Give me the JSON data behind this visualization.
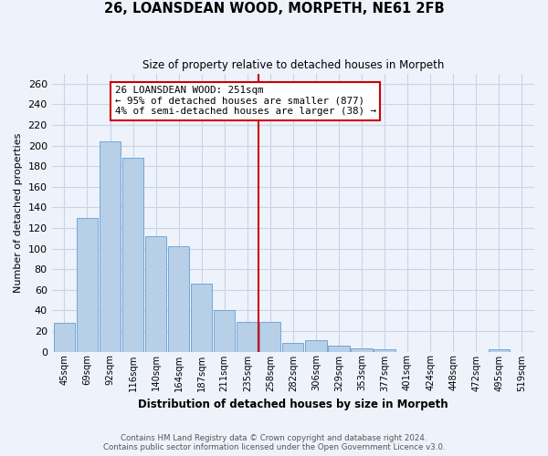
{
  "title": "26, LOANSDEAN WOOD, MORPETH, NE61 2FB",
  "subtitle": "Size of property relative to detached houses in Morpeth",
  "xlabel": "Distribution of detached houses by size in Morpeth",
  "ylabel": "Number of detached properties",
  "bar_labels": [
    "45sqm",
    "69sqm",
    "92sqm",
    "116sqm",
    "140sqm",
    "164sqm",
    "187sqm",
    "211sqm",
    "235sqm",
    "258sqm",
    "282sqm",
    "306sqm",
    "329sqm",
    "353sqm",
    "377sqm",
    "401sqm",
    "424sqm",
    "448sqm",
    "472sqm",
    "495sqm",
    "519sqm"
  ],
  "bar_values": [
    28,
    130,
    204,
    188,
    112,
    102,
    66,
    40,
    29,
    29,
    8,
    11,
    6,
    3,
    2,
    0,
    0,
    0,
    0,
    2,
    0
  ],
  "bar_color": "#b8cfe8",
  "bar_edge_color": "#6fa8d6",
  "grid_color": "#c8d4e8",
  "vline_x_index": 9,
  "vline_color": "#cc0000",
  "annotation_text": "26 LOANSDEAN WOOD: 251sqm\n← 95% of detached houses are smaller (877)\n4% of semi-detached houses are larger (38) →",
  "annotation_box_edge": "#cc0000",
  "annotation_box_bg": "#ffffff",
  "ylim": [
    0,
    270
  ],
  "yticks": [
    0,
    20,
    40,
    60,
    80,
    100,
    120,
    140,
    160,
    180,
    200,
    220,
    240,
    260
  ],
  "footer_line1": "Contains HM Land Registry data © Crown copyright and database right 2024.",
  "footer_line2": "Contains public sector information licensed under the Open Government Licence v3.0.",
  "bg_color": "#eef2fb"
}
